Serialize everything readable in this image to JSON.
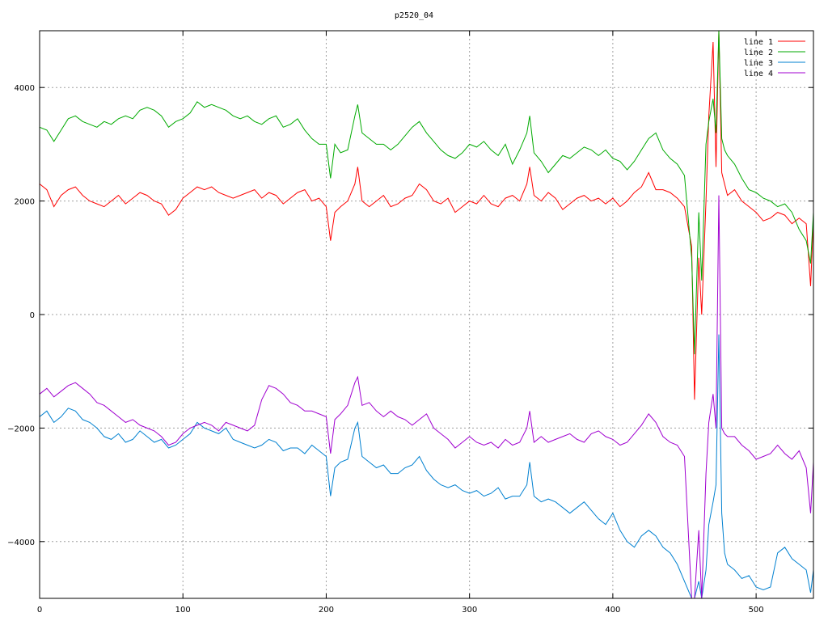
{
  "chart_data": {
    "type": "line",
    "title": "p2520_04",
    "xlabel": "",
    "ylabel": "",
    "xlim": [
      0,
      540
    ],
    "ylim": [
      -5000,
      5000
    ],
    "grid": true,
    "legend_position": "top-right",
    "x_ticks": [
      0,
      100,
      200,
      300,
      400,
      500
    ],
    "y_ticks": [
      -4000,
      -2000,
      0,
      2000,
      4000
    ],
    "x_tick_labels": [
      "0",
      "100",
      "200",
      "300",
      "400",
      "500"
    ],
    "y_tick_labels": [
      "-4000",
      "-2000",
      "0",
      "2000",
      "4000"
    ],
    "series": [
      {
        "name": "line 1",
        "color": "#ff0000",
        "x": [
          0,
          5,
          10,
          15,
          20,
          25,
          30,
          35,
          40,
          45,
          50,
          55,
          60,
          65,
          70,
          75,
          80,
          85,
          90,
          95,
          100,
          105,
          110,
          115,
          120,
          125,
          130,
          135,
          140,
          145,
          150,
          155,
          160,
          165,
          170,
          175,
          180,
          185,
          190,
          195,
          200,
          203,
          206,
          210,
          215,
          220,
          222,
          225,
          230,
          235,
          240,
          245,
          250,
          255,
          260,
          265,
          270,
          275,
          280,
          285,
          290,
          295,
          300,
          305,
          310,
          315,
          320,
          325,
          330,
          335,
          340,
          342,
          345,
          350,
          355,
          360,
          365,
          370,
          375,
          380,
          385,
          390,
          395,
          400,
          405,
          410,
          415,
          420,
          425,
          430,
          435,
          440,
          445,
          450,
          455,
          457,
          460,
          462,
          465,
          467,
          470,
          472,
          474,
          476,
          478,
          480,
          485,
          490,
          495,
          500,
          505,
          510,
          515,
          520,
          525,
          530,
          535,
          538,
          540
        ],
        "y": [
          2300,
          2200,
          1900,
          2100,
          2200,
          2250,
          2100,
          2000,
          1950,
          1900,
          2000,
          2100,
          1950,
          2050,
          2150,
          2100,
          2000,
          1950,
          1750,
          1850,
          2050,
          2150,
          2250,
          2200,
          2250,
          2150,
          2100,
          2050,
          2100,
          2150,
          2200,
          2050,
          2150,
          2100,
          1950,
          2050,
          2150,
          2200,
          2000,
          2050,
          1900,
          1300,
          1800,
          1900,
          2000,
          2300,
          2600,
          2000,
          1900,
          2000,
          2100,
          1900,
          1950,
          2050,
          2100,
          2300,
          2200,
          2000,
          1950,
          2050,
          1800,
          1900,
          2000,
          1950,
          2100,
          1950,
          1900,
          2050,
          2100,
          2000,
          2300,
          2600,
          2100,
          2000,
          2150,
          2050,
          1850,
          1950,
          2050,
          2100,
          2000,
          2050,
          1950,
          2050,
          1900,
          2000,
          2150,
          2250,
          2500,
          2200,
          2200,
          2150,
          2050,
          1900,
          1200,
          -1500,
          1000,
          0,
          2000,
          3500,
          4800,
          2600,
          5000,
          2500,
          2300,
          2100,
          2200,
          2000,
          1900,
          1800,
          1650,
          1700,
          1800,
          1750,
          1600,
          1700,
          1600,
          500,
          1700
        ]
      },
      {
        "name": "line 2",
        "color": "#00aa00",
        "x": [
          0,
          5,
          10,
          15,
          20,
          25,
          30,
          35,
          40,
          45,
          50,
          55,
          60,
          65,
          70,
          75,
          80,
          85,
          90,
          95,
          100,
          105,
          110,
          115,
          120,
          125,
          130,
          135,
          140,
          145,
          150,
          155,
          160,
          165,
          170,
          175,
          180,
          185,
          190,
          195,
          200,
          203,
          206,
          210,
          215,
          220,
          222,
          225,
          230,
          235,
          240,
          245,
          250,
          255,
          260,
          265,
          270,
          275,
          280,
          285,
          290,
          295,
          300,
          305,
          310,
          315,
          320,
          325,
          330,
          335,
          340,
          342,
          345,
          350,
          355,
          360,
          365,
          370,
          375,
          380,
          385,
          390,
          395,
          400,
          405,
          410,
          415,
          420,
          425,
          430,
          435,
          440,
          445,
          450,
          455,
          457,
          460,
          462,
          465,
          467,
          470,
          472,
          474,
          476,
          478,
          480,
          485,
          490,
          495,
          500,
          505,
          510,
          515,
          520,
          525,
          530,
          535,
          538,
          540
        ],
        "y": [
          3300,
          3250,
          3050,
          3250,
          3450,
          3500,
          3400,
          3350,
          3300,
          3400,
          3350,
          3450,
          3500,
          3450,
          3600,
          3650,
          3600,
          3500,
          3300,
          3400,
          3450,
          3550,
          3750,
          3650,
          3700,
          3650,
          3600,
          3500,
          3450,
          3500,
          3400,
          3350,
          3450,
          3500,
          3300,
          3350,
          3450,
          3250,
          3100,
          3000,
          3000,
          2400,
          3000,
          2850,
          2900,
          3500,
          3700,
          3200,
          3100,
          3000,
          3000,
          2900,
          3000,
          3150,
          3300,
          3400,
          3200,
          3050,
          2900,
          2800,
          2750,
          2850,
          3000,
          2950,
          3050,
          2900,
          2800,
          3000,
          2650,
          2900,
          3200,
          3500,
          2850,
          2700,
          2500,
          2650,
          2800,
          2750,
          2850,
          2950,
          2900,
          2800,
          2900,
          2750,
          2700,
          2550,
          2700,
          2900,
          3100,
          3200,
          2900,
          2750,
          2650,
          2450,
          1000,
          -700,
          1800,
          600,
          3000,
          3400,
          3800,
          3200,
          5000,
          3100,
          2900,
          2800,
          2650,
          2400,
          2200,
          2150,
          2050,
          2000,
          1900,
          1950,
          1800,
          1500,
          1300,
          900,
          1800
        ]
      },
      {
        "name": "line 3",
        "color": "#0080d0",
        "x": [
          0,
          5,
          10,
          15,
          20,
          25,
          30,
          35,
          40,
          45,
          50,
          55,
          60,
          65,
          70,
          75,
          80,
          85,
          90,
          95,
          100,
          105,
          110,
          115,
          120,
          125,
          130,
          135,
          140,
          145,
          150,
          155,
          160,
          165,
          170,
          175,
          180,
          185,
          190,
          195,
          200,
          203,
          206,
          210,
          215,
          220,
          222,
          225,
          230,
          235,
          240,
          245,
          250,
          255,
          260,
          265,
          270,
          275,
          280,
          285,
          290,
          295,
          300,
          305,
          310,
          315,
          320,
          325,
          330,
          335,
          340,
          342,
          345,
          350,
          355,
          360,
          365,
          370,
          375,
          380,
          385,
          390,
          395,
          400,
          405,
          410,
          415,
          420,
          425,
          430,
          435,
          440,
          445,
          450,
          455,
          457,
          460,
          462,
          465,
          467,
          470,
          472,
          474,
          476,
          478,
          480,
          485,
          490,
          495,
          500,
          505,
          510,
          515,
          520,
          525,
          530,
          535,
          538,
          540
        ],
        "y": [
          -1800,
          -1700,
          -1900,
          -1800,
          -1650,
          -1700,
          -1850,
          -1900,
          -2000,
          -2150,
          -2200,
          -2100,
          -2250,
          -2200,
          -2050,
          -2150,
          -2250,
          -2200,
          -2350,
          -2300,
          -2200,
          -2100,
          -1900,
          -2000,
          -2050,
          -2100,
          -2000,
          -2200,
          -2250,
          -2300,
          -2350,
          -2300,
          -2200,
          -2250,
          -2400,
          -2350,
          -2350,
          -2450,
          -2300,
          -2400,
          -2500,
          -3200,
          -2700,
          -2600,
          -2550,
          -2000,
          -1900,
          -2500,
          -2600,
          -2700,
          -2650,
          -2800,
          -2800,
          -2700,
          -2650,
          -2500,
          -2750,
          -2900,
          -3000,
          -3050,
          -3000,
          -3100,
          -3150,
          -3100,
          -3200,
          -3150,
          -3050,
          -3250,
          -3200,
          -3200,
          -3000,
          -2600,
          -3200,
          -3300,
          -3250,
          -3300,
          -3400,
          -3500,
          -3400,
          -3300,
          -3450,
          -3600,
          -3700,
          -3500,
          -3800,
          -4000,
          -4100,
          -3900,
          -3800,
          -3900,
          -4100,
          -4200,
          -4400,
          -4700,
          -5000,
          -5000,
          -4700,
          -5000,
          -4500,
          -3700,
          -3300,
          -3000,
          -350,
          -3500,
          -4200,
          -4400,
          -4500,
          -4650,
          -4600,
          -4800,
          -4850,
          -4800,
          -4200,
          -4100,
          -4300,
          -4400,
          -4500,
          -4900,
          -4500
        ]
      },
      {
        "name": "line 4",
        "color": "#a000d0",
        "x": [
          0,
          5,
          10,
          15,
          20,
          25,
          30,
          35,
          40,
          45,
          50,
          55,
          60,
          65,
          70,
          75,
          80,
          85,
          90,
          95,
          100,
          105,
          110,
          115,
          120,
          125,
          130,
          135,
          140,
          145,
          150,
          155,
          160,
          165,
          170,
          175,
          180,
          185,
          190,
          195,
          200,
          203,
          206,
          210,
          215,
          220,
          222,
          225,
          230,
          235,
          240,
          245,
          250,
          255,
          260,
          265,
          270,
          275,
          280,
          285,
          290,
          295,
          300,
          305,
          310,
          315,
          320,
          325,
          330,
          335,
          340,
          342,
          345,
          350,
          355,
          360,
          365,
          370,
          375,
          380,
          385,
          390,
          395,
          400,
          405,
          410,
          415,
          420,
          425,
          430,
          435,
          440,
          445,
          450,
          455,
          457,
          460,
          462,
          465,
          467,
          470,
          472,
          474,
          476,
          478,
          480,
          485,
          490,
          495,
          500,
          505,
          510,
          515,
          520,
          525,
          530,
          535,
          538,
          540
        ],
        "y": [
          -1400,
          -1300,
          -1450,
          -1350,
          -1250,
          -1200,
          -1300,
          -1400,
          -1550,
          -1600,
          -1700,
          -1800,
          -1900,
          -1850,
          -1950,
          -2000,
          -2050,
          -2150,
          -2300,
          -2250,
          -2100,
          -2000,
          -1950,
          -1900,
          -1950,
          -2050,
          -1900,
          -1950,
          -2000,
          -2050,
          -1950,
          -1500,
          -1250,
          -1300,
          -1400,
          -1550,
          -1600,
          -1700,
          -1700,
          -1750,
          -1800,
          -2450,
          -1850,
          -1750,
          -1600,
          -1200,
          -1100,
          -1600,
          -1550,
          -1700,
          -1800,
          -1700,
          -1800,
          -1850,
          -1950,
          -1850,
          -1750,
          -2000,
          -2100,
          -2200,
          -2350,
          -2250,
          -2150,
          -2250,
          -2300,
          -2250,
          -2350,
          -2200,
          -2300,
          -2250,
          -2000,
          -1700,
          -2250,
          -2150,
          -2250,
          -2200,
          -2150,
          -2100,
          -2200,
          -2250,
          -2100,
          -2050,
          -2150,
          -2200,
          -2300,
          -2250,
          -2100,
          -1950,
          -1750,
          -1900,
          -2150,
          -2250,
          -2300,
          -2500,
          -5000,
          -5000,
          -3800,
          -5000,
          -2800,
          -1900,
          -1400,
          -2000,
          2100,
          -2000,
          -2100,
          -2150,
          -2150,
          -2300,
          -2400,
          -2550,
          -2500,
          -2450,
          -2300,
          -2450,
          -2550,
          -2400,
          -2700,
          -3500,
          -2600
        ]
      }
    ]
  }
}
